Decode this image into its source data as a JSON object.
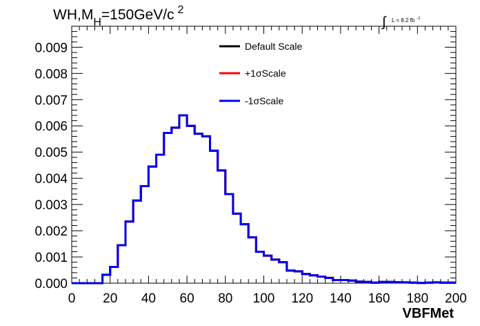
{
  "chart_data": {
    "type": "line",
    "title": {
      "part1": "WH,M",
      "sub": "H",
      "part2": "=150GeV/c",
      "sup": "2"
    },
    "luminosity": {
      "integral_symbol": "∫",
      "text": "L = 8.2 fb",
      "sup": "-1"
    },
    "xlabel": "VBFMet",
    "ylabel": "",
    "xlim": [
      0,
      200
    ],
    "ylim": [
      0,
      0.0098
    ],
    "x_ticks": [
      "0",
      "20",
      "40",
      "60",
      "80",
      "100",
      "120",
      "140",
      "160",
      "180",
      "200"
    ],
    "y_ticks": [
      "0.000",
      "0.001",
      "0.002",
      "0.003",
      "0.004",
      "0.005",
      "0.006",
      "0.007",
      "0.008",
      "0.009"
    ],
    "bin_width": 4,
    "bin_edges_start": 0,
    "legend_position": "top-center",
    "series": [
      {
        "name": "Default Scale",
        "color": "#000000",
        "values": [
          0.0,
          0.0,
          0.0,
          0.0,
          0.00032,
          0.00062,
          0.00145,
          0.00235,
          0.00315,
          0.0037,
          0.00445,
          0.0049,
          0.00573,
          0.00593,
          0.0064,
          0.006,
          0.0057,
          0.0056,
          0.00505,
          0.0043,
          0.0034,
          0.00265,
          0.00225,
          0.00175,
          0.0012,
          0.00105,
          0.0009,
          0.0008,
          0.00048,
          0.00045,
          0.00035,
          0.0003,
          0.00025,
          0.0002,
          0.00012,
          0.00012,
          0.0001,
          6e-05,
          5e-05,
          2e-05,
          5e-05,
          5e-05,
          4e-05,
          3e-05,
          2e-05,
          1e-05,
          2e-05,
          3e-05,
          2e-05,
          2e-05
        ]
      },
      {
        "name": "+1σScale",
        "color": "#ff0000",
        "values": [
          0.0,
          0.0,
          0.0,
          0.0,
          0.00032,
          0.00062,
          0.00145,
          0.00235,
          0.00315,
          0.0037,
          0.00445,
          0.0049,
          0.00573,
          0.00593,
          0.0064,
          0.006,
          0.0057,
          0.0056,
          0.00505,
          0.0043,
          0.0034,
          0.00265,
          0.00225,
          0.00175,
          0.0012,
          0.00105,
          0.0009,
          0.0008,
          0.00048,
          0.00045,
          0.00035,
          0.0003,
          0.00025,
          0.0002,
          0.00012,
          0.00012,
          0.0001,
          6e-05,
          5e-05,
          2e-05,
          5e-05,
          5e-05,
          4e-05,
          3e-05,
          2e-05,
          1e-05,
          2e-05,
          3e-05,
          2e-05,
          2e-05
        ]
      },
      {
        "name": "-1σScale",
        "color": "#0000ee",
        "values": [
          0.0,
          0.0,
          0.0,
          0.0,
          0.00032,
          0.00062,
          0.00145,
          0.00235,
          0.00315,
          0.0037,
          0.00445,
          0.0049,
          0.00573,
          0.00593,
          0.0064,
          0.006,
          0.0057,
          0.0056,
          0.00505,
          0.0043,
          0.0034,
          0.00265,
          0.00225,
          0.00175,
          0.0012,
          0.00105,
          0.0009,
          0.0008,
          0.00048,
          0.00045,
          0.00035,
          0.0003,
          0.00025,
          0.0002,
          0.00012,
          0.00012,
          0.0001,
          6e-05,
          5e-05,
          2e-05,
          5e-05,
          5e-05,
          4e-05,
          3e-05,
          2e-05,
          1e-05,
          2e-05,
          3e-05,
          2e-05,
          2e-05
        ]
      }
    ]
  }
}
